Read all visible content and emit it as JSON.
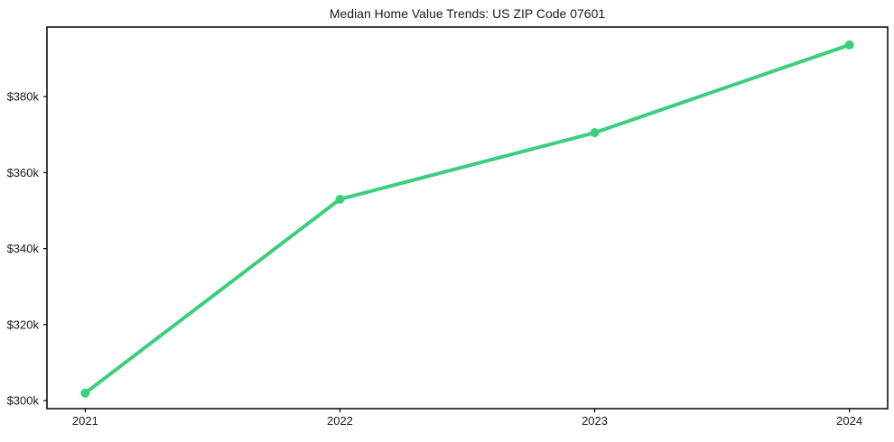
{
  "chart_data": {
    "type": "line",
    "title": "Median Home Value Trends: US ZIP Code 07601",
    "xlabel": "",
    "ylabel": "",
    "x": [
      "2021",
      "2022",
      "2023",
      "2024"
    ],
    "series": [
      {
        "values": [
          302000,
          353000,
          370500,
          393600
        ]
      }
    ],
    "xtick_labels": [
      "2021",
      "2022",
      "2023",
      "2024"
    ],
    "yticks": [
      {
        "label": "$300k",
        "value": 300000
      },
      {
        "label": "$320k",
        "value": 320000
      },
      {
        "label": "$340k",
        "value": 340000
      },
      {
        "label": "$360k",
        "value": 360000
      },
      {
        "label": "$380k",
        "value": 380000
      }
    ],
    "ylim": [
      297900,
      398300
    ],
    "grid": false,
    "legend": "none",
    "line_color": "#3bce7d",
    "marker": "circle",
    "spine_color": "#000000",
    "text_color": "#1a1a1a"
  }
}
